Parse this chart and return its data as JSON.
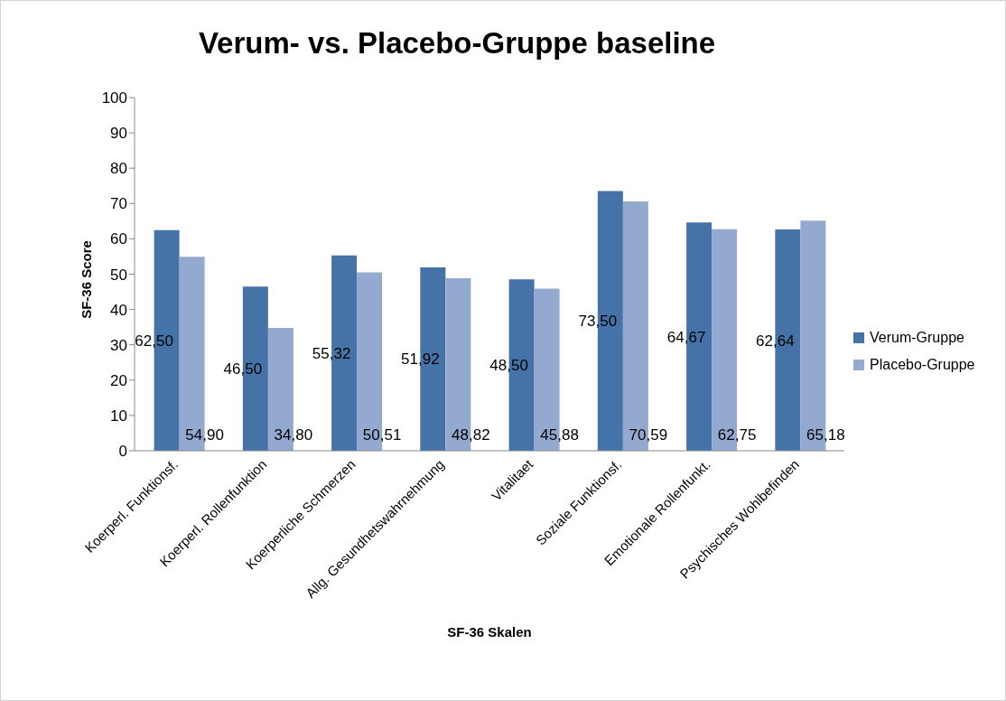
{
  "chart_data": {
    "type": "bar",
    "title": "Verum- vs. Placebo-Gruppe baseline",
    "xlabel": "SF-36 Skalen",
    "ylabel": "SF-36 Score",
    "categories": [
      "Koerperl. Funktionsf.",
      "Koerperl. Rollenfunktion",
      "Koerperliche Schmerzen",
      "Allg. Gesundhetswahrnehmung",
      "Vitalitaet",
      "Soziale Funktionsf.",
      "Emotionale Rollenfunkt.",
      "Psychisches Wohlbefinden"
    ],
    "series": [
      {
        "name": "Verum-Gruppe",
        "color": "#4572a7",
        "values": [
          62.5,
          46.5,
          55.32,
          51.92,
          48.5,
          73.5,
          64.67,
          62.64
        ],
        "value_labels": [
          "62,50",
          "46,50",
          "55,32",
          "51,92",
          "48,50",
          "73,50",
          "64,67",
          "62,64"
        ]
      },
      {
        "name": "Placebo-Gruppe",
        "color": "#94a9d0",
        "values": [
          54.9,
          34.8,
          50.51,
          48.82,
          45.88,
          70.59,
          62.75,
          65.18
        ],
        "value_labels": [
          "54,90",
          "34,80",
          "50,51",
          "48,82",
          "45,88",
          "70,59",
          "62,75",
          "65,18"
        ]
      }
    ],
    "ylim": [
      0,
      100
    ],
    "yticks": [
      0,
      10,
      20,
      30,
      40,
      50,
      60,
      70,
      80,
      90,
      100
    ],
    "grid": false,
    "legend": "right"
  }
}
